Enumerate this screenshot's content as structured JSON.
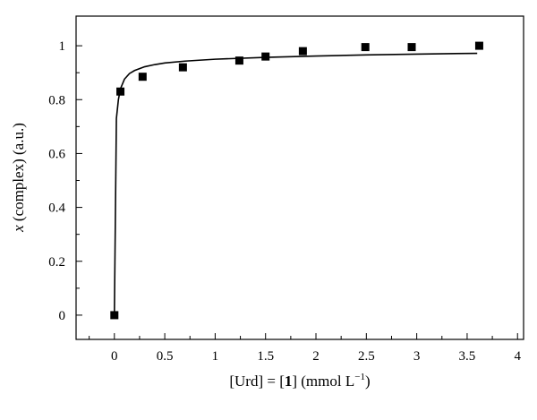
{
  "chart_data": {
    "type": "scatter",
    "x": [
      0,
      0.06,
      0.28,
      0.68,
      1.24,
      1.5,
      1.87,
      2.49,
      2.95,
      3.62
    ],
    "y": [
      0,
      0.83,
      0.885,
      0.92,
      0.945,
      0.96,
      0.98,
      0.995,
      0.995,
      1.0
    ],
    "fit_curve": {
      "x": [
        0,
        0.02,
        0.04,
        0.06,
        0.1,
        0.15,
        0.2,
        0.3,
        0.4,
        0.5,
        0.7,
        1.0,
        1.5,
        2.0,
        2.5,
        3.0,
        3.6
      ],
      "y": [
        0,
        0.73,
        0.8,
        0.84,
        0.876,
        0.897,
        0.908,
        0.922,
        0.93,
        0.936,
        0.943,
        0.95,
        0.957,
        0.962,
        0.966,
        0.969,
        0.972
      ]
    },
    "xlabel_parts": [
      "[Urd] = [",
      "1",
      "] (mmol L",
      "−1",
      ")"
    ],
    "ylabel_parts": [
      "x",
      " (complex) (a.u.)"
    ],
    "x_ticks": [
      0,
      0.5,
      1,
      1.5,
      2,
      2.5,
      3,
      3.5,
      4
    ],
    "x_tick_labels": [
      "0",
      "0.5",
      "1",
      "1.5",
      "2",
      "2.5",
      "3",
      "3.5",
      "4"
    ],
    "y_ticks": [
      0,
      0.2,
      0.4,
      0.6,
      0.8,
      1
    ],
    "y_tick_labels": [
      "0",
      "0.2",
      "0.4",
      "0.6",
      "0.8",
      "1"
    ],
    "xlim": [
      -0.38,
      4.06
    ],
    "ylim": [
      -0.09,
      1.11
    ],
    "grid": false,
    "legend": "none",
    "marker": "filled-square",
    "color": "#000000"
  }
}
